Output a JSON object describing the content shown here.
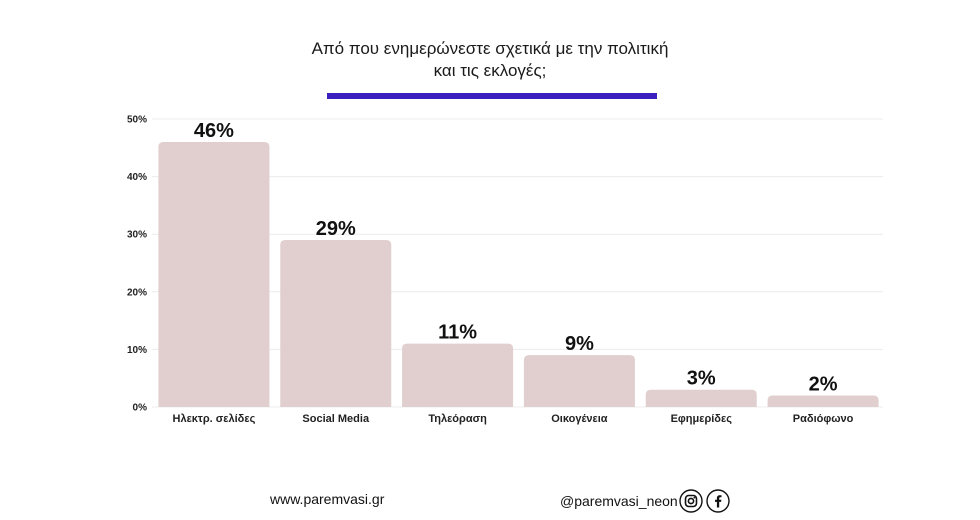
{
  "title": {
    "line1": "Από που ενημερώνεστε σχετικά με την πολιτική",
    "line2": "και τις εκλογές;"
  },
  "colors": {
    "bar": "#e1cfcf",
    "accent_rule": "#3b1fbf",
    "grid": "#ececec",
    "text": "#111111"
  },
  "chart_data": {
    "type": "bar",
    "title": "Από που ενημερώνεστε σχετικά με την πολιτική και τις εκλογές;",
    "categories": [
      "Ηλεκτρ. σελίδες",
      "Social Media",
      "Τηλεόραση",
      "Οικογένεια",
      "Εφημερίδες",
      "Ραδιόφωνο"
    ],
    "values": [
      46,
      29,
      11,
      9,
      3,
      2
    ],
    "data_labels": [
      "46%",
      "29%",
      "11%",
      "9%",
      "3%",
      "2%"
    ],
    "yticks": [
      0,
      10,
      20,
      30,
      40,
      50
    ],
    "ytick_labels": [
      "0%",
      "10%",
      "20%",
      "30%",
      "40%",
      "50%"
    ],
    "ylim": [
      0,
      50
    ],
    "grid": true,
    "legend": "none"
  },
  "footer": {
    "website": "www.paremvasi.gr",
    "handle": "@paremvasi_neon",
    "icons": [
      "instagram-icon",
      "facebook-icon"
    ]
  }
}
